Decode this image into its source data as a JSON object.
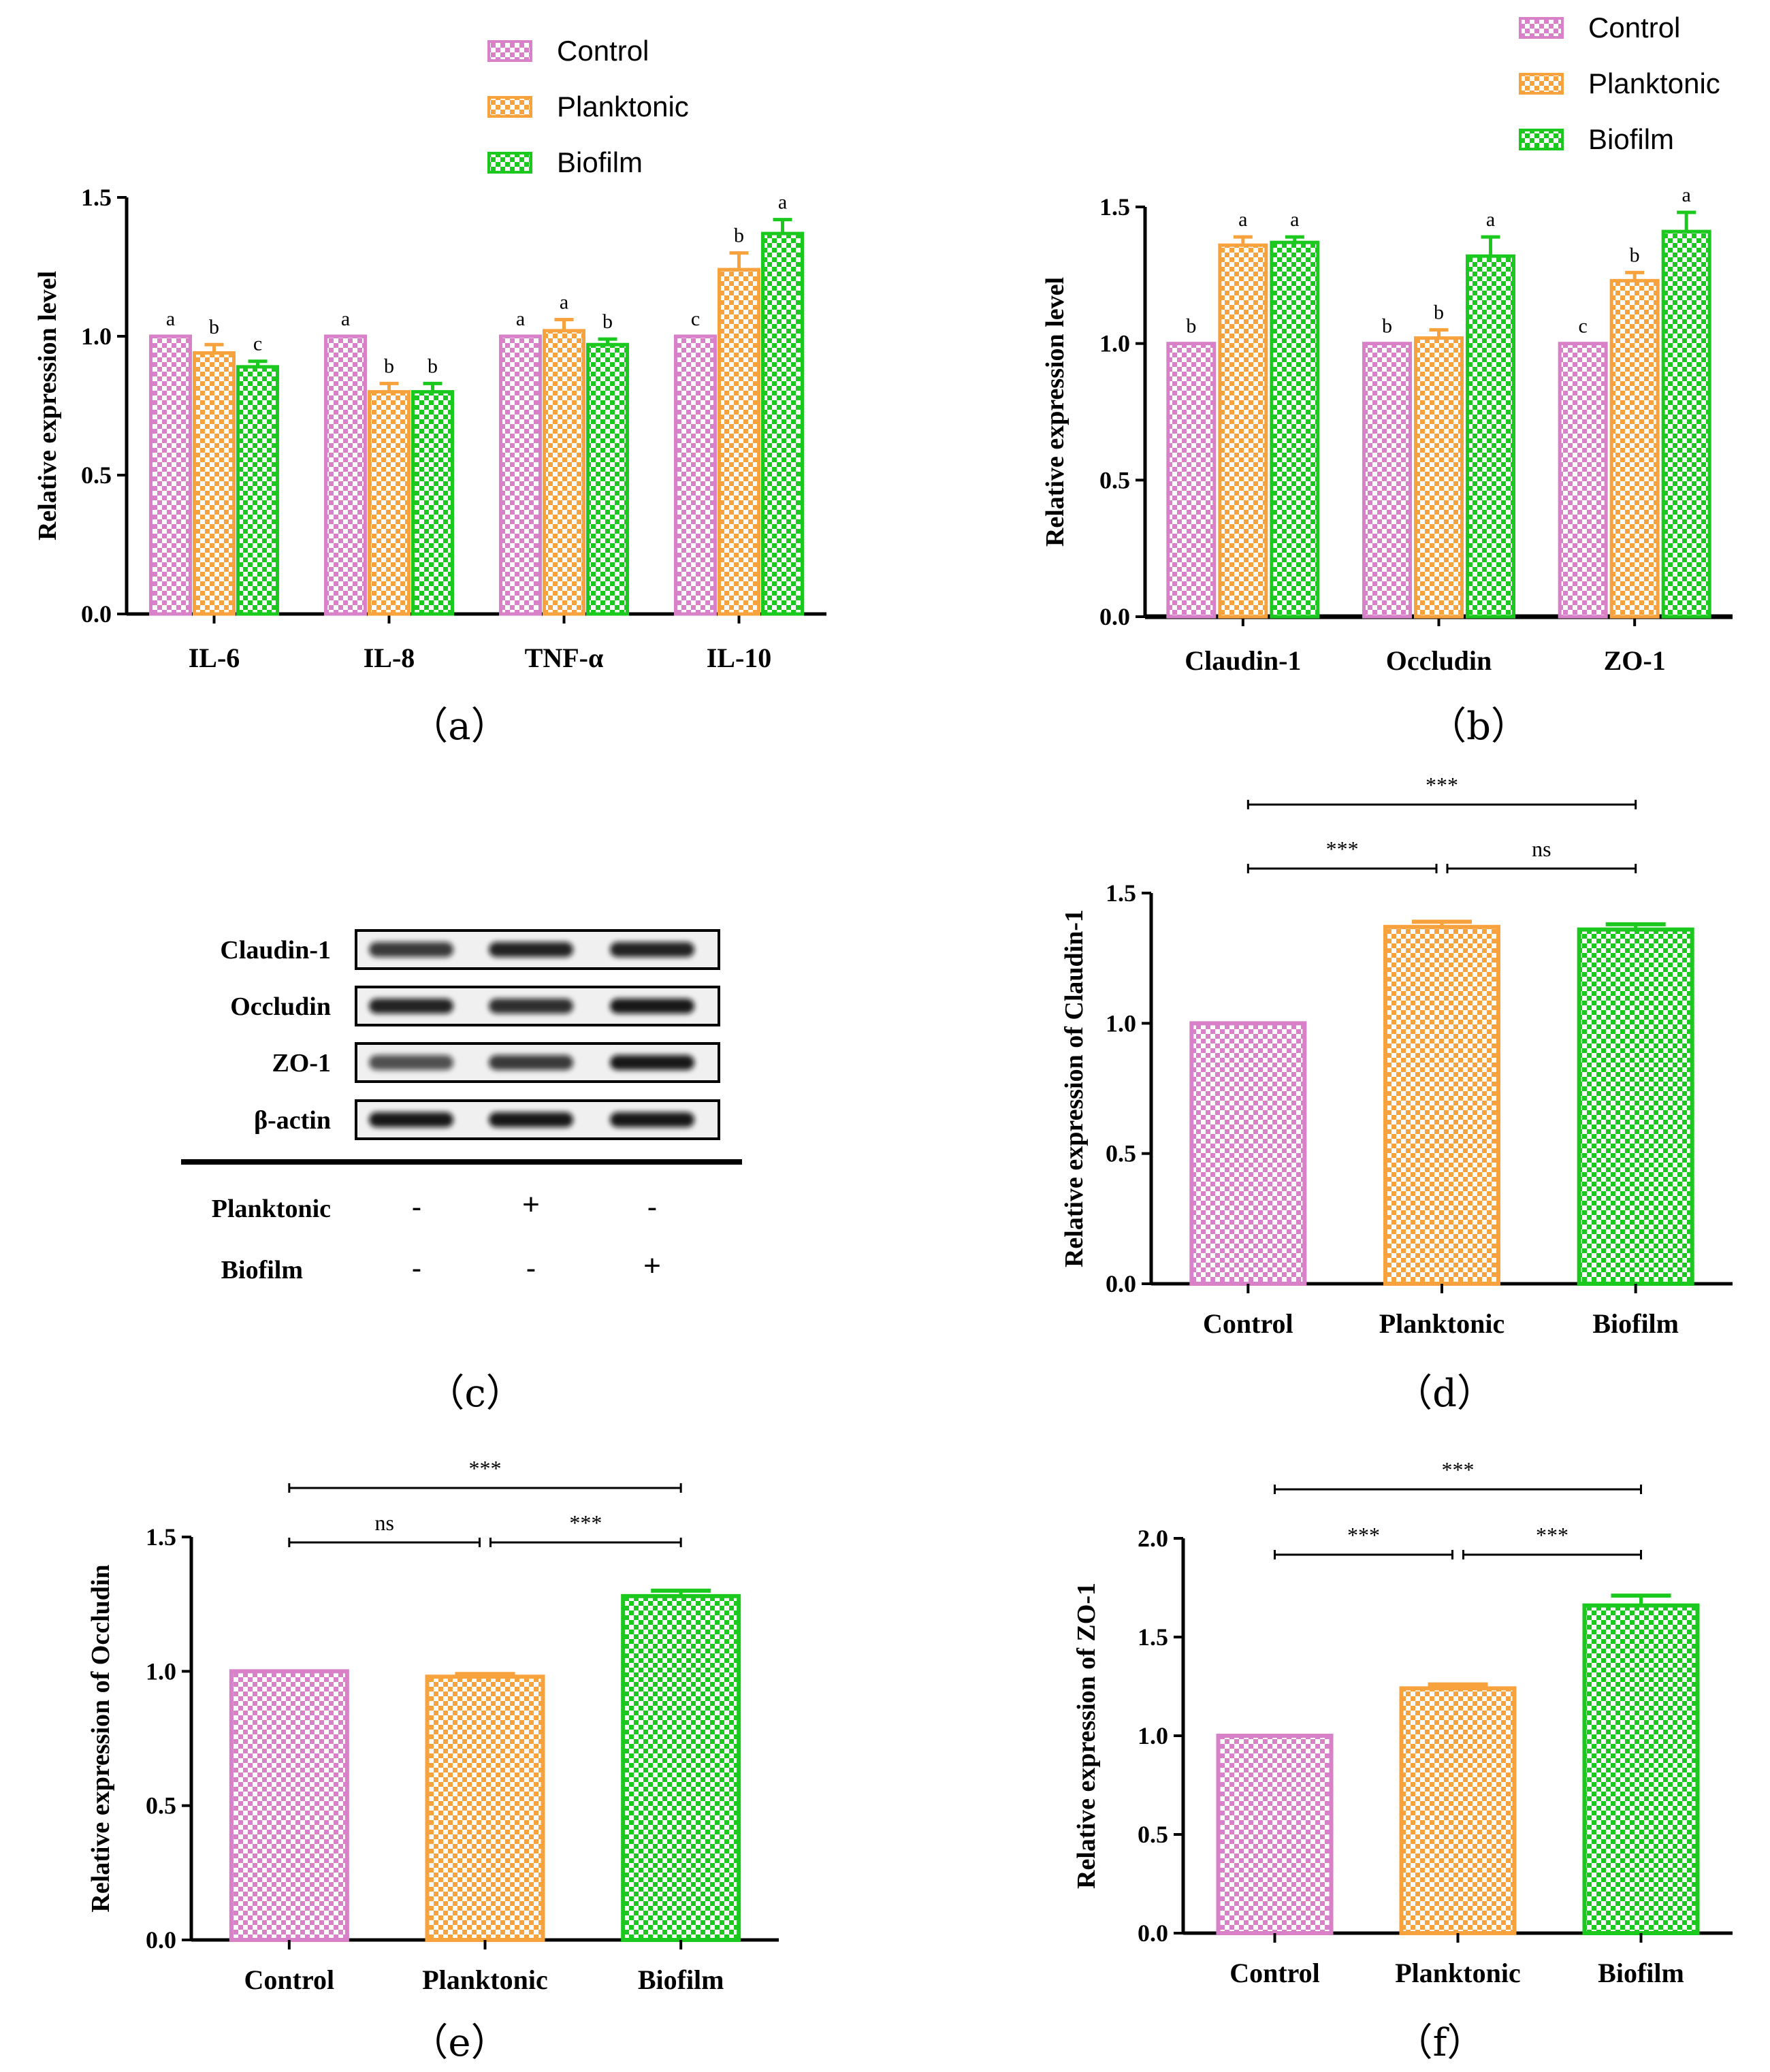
{
  "colors": {
    "Control": "#d881c8",
    "Planktonic": "#f7a23c",
    "Biofilm": "#1bc81e",
    "axis": "#000000"
  },
  "legend": {
    "a": [
      "Control",
      "Planktonic",
      "Biofilm"
    ],
    "b": [
      "Control",
      "Planktonic",
      "Biofilm"
    ]
  },
  "western_blot": {
    "proteins": [
      "Claudin-1",
      "Occludin",
      "ZO-1",
      "β-actin"
    ],
    "conditions": [
      {
        "label": "Planktonic",
        "signs": [
          "-",
          "+",
          "-"
        ]
      },
      {
        "label": "Biofilm",
        "signs": [
          "-",
          "-",
          "+"
        ]
      }
    ],
    "band_intensity": [
      [
        0.8,
        0.9,
        0.9
      ],
      [
        0.9,
        0.85,
        0.95
      ],
      [
        0.7,
        0.8,
        0.95
      ],
      [
        0.95,
        0.95,
        0.95
      ]
    ],
    "panel_label": "（c）"
  },
  "chart_data": [
    {
      "id": "a",
      "type": "bar",
      "panel_label": "（a）",
      "ylabel": "Relative expression level",
      "xlabel": "",
      "ylim": [
        0,
        1.5
      ],
      "yticks": [
        "0.0",
        "0.5",
        "1.0",
        "1.5"
      ],
      "categories": [
        "IL-6",
        "IL-8",
        "TNF-α",
        "IL-10"
      ],
      "series": [
        {
          "name": "Control",
          "values": [
            1.0,
            1.0,
            1.0,
            1.0
          ],
          "errors": [
            0,
            0,
            0,
            0
          ],
          "letters": [
            "a",
            "a",
            "a",
            "c"
          ]
        },
        {
          "name": "Planktonic",
          "values": [
            0.94,
            0.8,
            1.02,
            1.24
          ],
          "errors": [
            0.03,
            0.03,
            0.04,
            0.06
          ],
          "letters": [
            "b",
            "b",
            "a",
            "b"
          ]
        },
        {
          "name": "Biofilm",
          "values": [
            0.89,
            0.8,
            0.97,
            1.37
          ],
          "errors": [
            0.02,
            0.03,
            0.02,
            0.05
          ],
          "letters": [
            "c",
            "b",
            "b",
            "a"
          ]
        }
      ]
    },
    {
      "id": "b",
      "type": "bar",
      "panel_label": "（b）",
      "ylabel": "Relative expression level",
      "xlabel": "",
      "ylim": [
        0,
        1.5
      ],
      "yticks": [
        "0.0",
        "0.5",
        "1.0",
        "1.5"
      ],
      "categories": [
        "Claudin-1",
        "Occludin",
        "ZO-1"
      ],
      "series": [
        {
          "name": "Control",
          "values": [
            1.0,
            1.0,
            1.0
          ],
          "errors": [
            0,
            0,
            0
          ],
          "letters": [
            "b",
            "b",
            "c"
          ]
        },
        {
          "name": "Planktonic",
          "values": [
            1.36,
            1.02,
            1.23
          ],
          "errors": [
            0.03,
            0.03,
            0.03
          ],
          "letters": [
            "a",
            "b",
            "b"
          ]
        },
        {
          "name": "Biofilm",
          "values": [
            1.37,
            1.32,
            1.41
          ],
          "errors": [
            0.02,
            0.07,
            0.07
          ],
          "letters": [
            "a",
            "a",
            "a"
          ]
        }
      ]
    },
    {
      "id": "d",
      "type": "bar",
      "panel_label": "（d）",
      "ylabel": "Relative expression of Claudin-1",
      "xlabel": "",
      "ylim": [
        0,
        1.5
      ],
      "yticks": [
        "0.0",
        "0.5",
        "1.0",
        "1.5"
      ],
      "categories": [
        "Control",
        "Planktonic",
        "Biofilm"
      ],
      "values": [
        1.0,
        1.37,
        1.36
      ],
      "errors": [
        0,
        0.02,
        0.02
      ],
      "significance": [
        {
          "from": 0,
          "to": 2,
          "label": "***",
          "level": 2
        },
        {
          "from": 0,
          "to": 1,
          "label": "***",
          "level": 1
        },
        {
          "from": 1,
          "to": 2,
          "label": "ns",
          "level": 1
        }
      ]
    },
    {
      "id": "e",
      "type": "bar",
      "panel_label": "（e）",
      "ylabel": "Relative expression of Occludin",
      "xlabel": "",
      "ylim": [
        0,
        1.5
      ],
      "yticks": [
        "0.0",
        "0.5",
        "1.0",
        "1.5"
      ],
      "categories": [
        "Control",
        "Planktonic",
        "Biofilm"
      ],
      "values": [
        1.0,
        0.98,
        1.28
      ],
      "errors": [
        0,
        0.01,
        0.02
      ],
      "significance": [
        {
          "from": 0,
          "to": 2,
          "label": "***",
          "level": 2
        },
        {
          "from": 0,
          "to": 1,
          "label": "ns",
          "level": 1
        },
        {
          "from": 1,
          "to": 2,
          "label": "***",
          "level": 1
        }
      ]
    },
    {
      "id": "f",
      "type": "bar",
      "panel_label": "（f）",
      "ylabel": "Relative expression of ZO-1",
      "xlabel": "",
      "ylim": [
        0,
        2.0
      ],
      "yticks": [
        "0.0",
        "0.5",
        "1.0",
        "1.5",
        "2.0"
      ],
      "categories": [
        "Control",
        "Planktonic",
        "Biofilm"
      ],
      "values": [
        1.0,
        1.24,
        1.66
      ],
      "errors": [
        0,
        0.02,
        0.05
      ],
      "significance": [
        {
          "from": 0,
          "to": 2,
          "label": "***",
          "level": 2
        },
        {
          "from": 0,
          "to": 1,
          "label": "***",
          "level": 1
        },
        {
          "from": 1,
          "to": 2,
          "label": "***",
          "level": 1
        }
      ]
    }
  ]
}
